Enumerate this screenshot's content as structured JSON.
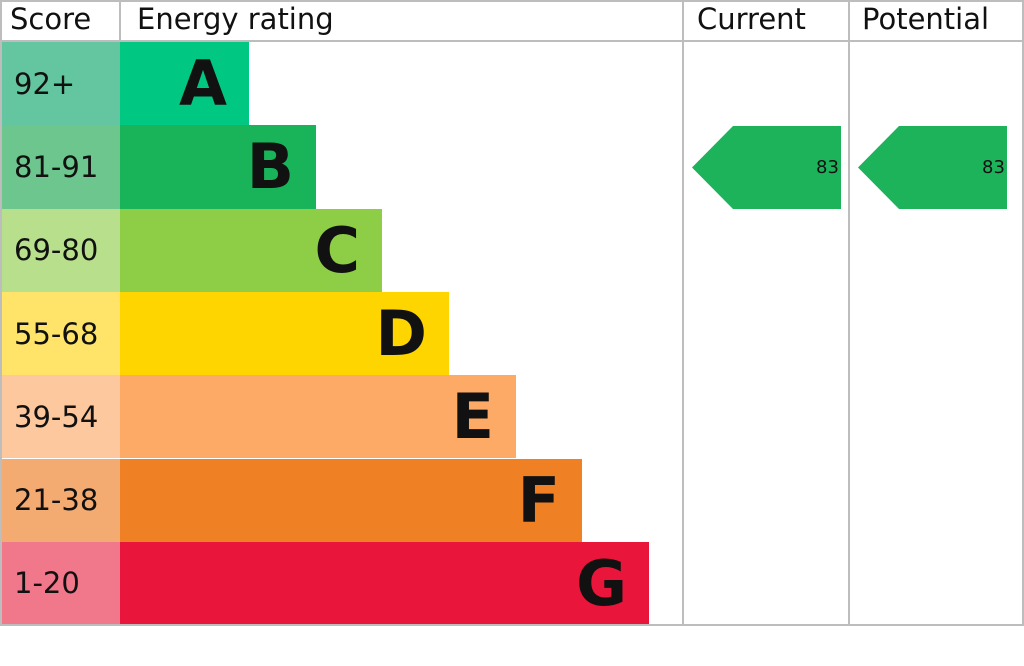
{
  "chart_data": {
    "type": "bar",
    "headers": {
      "score": "Score",
      "rating": "Energy rating",
      "current": "Current",
      "potential": "Potential"
    },
    "bands": [
      {
        "letter": "A",
        "range": "92+",
        "color": "#00c781",
        "score_color": "#64c6a0"
      },
      {
        "letter": "B",
        "range": "81-91",
        "color": "#19b459",
        "score_color": "#6dc68d"
      },
      {
        "letter": "C",
        "range": "69-80",
        "color": "#8dce46",
        "score_color": "#b8e08c"
      },
      {
        "letter": "D",
        "range": "55-68",
        "color": "#ffd500",
        "score_color": "#ffe469"
      },
      {
        "letter": "E",
        "range": "39-54",
        "color": "#fcaa65",
        "score_color": "#fdc89d"
      },
      {
        "letter": "F",
        "range": "21-38",
        "color": "#ef8023",
        "score_color": "#f4ab72"
      },
      {
        "letter": "G",
        "range": "1-20",
        "color": "#e9153b",
        "score_color": "#f1778a"
      }
    ],
    "current": {
      "value": "83",
      "band": "B",
      "color": "#1cb35b"
    },
    "potential": {
      "value": "83",
      "band": "B",
      "color": "#1cb35b"
    }
  }
}
